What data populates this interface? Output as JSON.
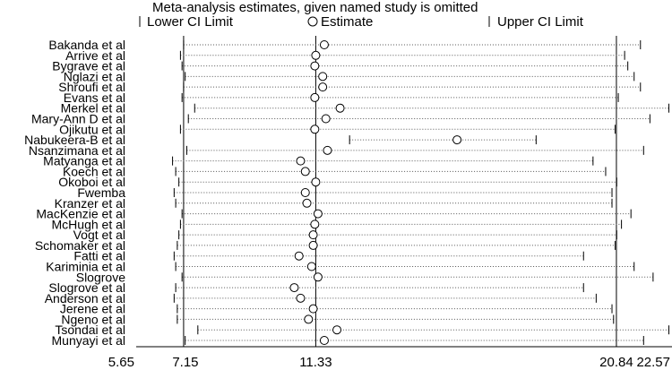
{
  "chart_data": {
    "type": "scatter",
    "title": "Meta-analysis estimates, given named study is omitted",
    "legend": {
      "position": "top",
      "items": [
        {
          "symbol": "bar",
          "label": "Lower CI Limit"
        },
        {
          "symbol": "circle",
          "label": "Estimate"
        },
        {
          "symbol": "bar",
          "label": "Upper CI Limit"
        }
      ]
    },
    "xlim": [
      5.65,
      22.57
    ],
    "x_ticks": [
      {
        "value": 5.65,
        "label": "5.65"
      },
      {
        "value": 7.15,
        "label": "7.15"
      },
      {
        "value": 11.33,
        "label": "11.33"
      },
      {
        "value": 20.84,
        "label": "20.84"
      },
      {
        "value": 22.57,
        "label": "22.57"
      }
    ],
    "reference_lines": [
      7.15,
      11.33,
      20.84
    ],
    "studies": [
      {
        "name": "Bakanda et al",
        "lower": 7.15,
        "estimate": 11.6,
        "upper": 21.6
      },
      {
        "name": "Arrive  et al",
        "lower": 7.05,
        "estimate": 11.33,
        "upper": 21.1
      },
      {
        "name": "Bygrave et al",
        "lower": 7.1,
        "estimate": 11.3,
        "upper": 21.2
      },
      {
        "name": "Nglazi et al",
        "lower": 7.2,
        "estimate": 11.55,
        "upper": 21.4
      },
      {
        "name": "Shroufi et al",
        "lower": 7.15,
        "estimate": 11.55,
        "upper": 21.6
      },
      {
        "name": "Evans et al",
        "lower": 7.1,
        "estimate": 11.3,
        "upper": 20.9
      },
      {
        "name": "Merkel et al",
        "lower": 7.5,
        "estimate": 12.1,
        "upper": 22.5
      },
      {
        "name": "Mary-Ann D et al",
        "lower": 7.3,
        "estimate": 11.65,
        "upper": 21.9
      },
      {
        "name": "Ojikutu et al",
        "lower": 7.05,
        "estimate": 11.3,
        "upper": 20.8
      },
      {
        "name": "Nabukeera-B et al",
        "lower": 12.4,
        "estimate": 15.8,
        "upper": 18.3
      },
      {
        "name": "Nsanzimana et al",
        "lower": 7.25,
        "estimate": 11.7,
        "upper": 21.7
      },
      {
        "name": "Matyanga et al",
        "lower": 6.8,
        "estimate": 10.85,
        "upper": 20.1
      },
      {
        "name": "Koech et al",
        "lower": 6.9,
        "estimate": 11.0,
        "upper": 20.5
      },
      {
        "name": "Okoboi et al",
        "lower": 7.0,
        "estimate": 11.33,
        "upper": 20.85
      },
      {
        "name": "Fwemba",
        "lower": 6.85,
        "estimate": 11.0,
        "upper": 20.7
      },
      {
        "name": "Kranzer et al",
        "lower": 6.9,
        "estimate": 11.05,
        "upper": 20.7
      },
      {
        "name": "MacKenzie et al",
        "lower": 7.1,
        "estimate": 11.4,
        "upper": 21.3
      },
      {
        "name": "McHugh et al",
        "lower": 7.05,
        "estimate": 11.3,
        "upper": 21.0
      },
      {
        "name": "Vogt et al",
        "lower": 7.0,
        "estimate": 11.25,
        "upper": 20.85
      },
      {
        "name": "Schomaker et al",
        "lower": 6.95,
        "estimate": 11.25,
        "upper": 20.8
      },
      {
        "name": "Fatti et al",
        "lower": 6.85,
        "estimate": 10.8,
        "upper": 19.8
      },
      {
        "name": "Kariminia et al",
        "lower": 6.9,
        "estimate": 11.2,
        "upper": 21.4
      },
      {
        "name": "Slogrove",
        "lower": 7.1,
        "estimate": 11.4,
        "upper": 22.0
      },
      {
        "name": "Slogrove et al",
        "lower": 6.9,
        "estimate": 10.65,
        "upper": 19.8
      },
      {
        "name": "Anderson et al",
        "lower": 6.85,
        "estimate": 10.85,
        "upper": 20.2
      },
      {
        "name": "Jerene et al",
        "lower": 6.95,
        "estimate": 11.25,
        "upper": 20.7
      },
      {
        "name": "Ngeno et al",
        "lower": 6.95,
        "estimate": 11.1,
        "upper": 20.75
      },
      {
        "name": "Tsondai et al",
        "lower": 7.6,
        "estimate": 12.0,
        "upper": 22.5
      },
      {
        "name": "Munyayi et al",
        "lower": 7.2,
        "estimate": 11.6,
        "upper": 21.7
      }
    ]
  }
}
